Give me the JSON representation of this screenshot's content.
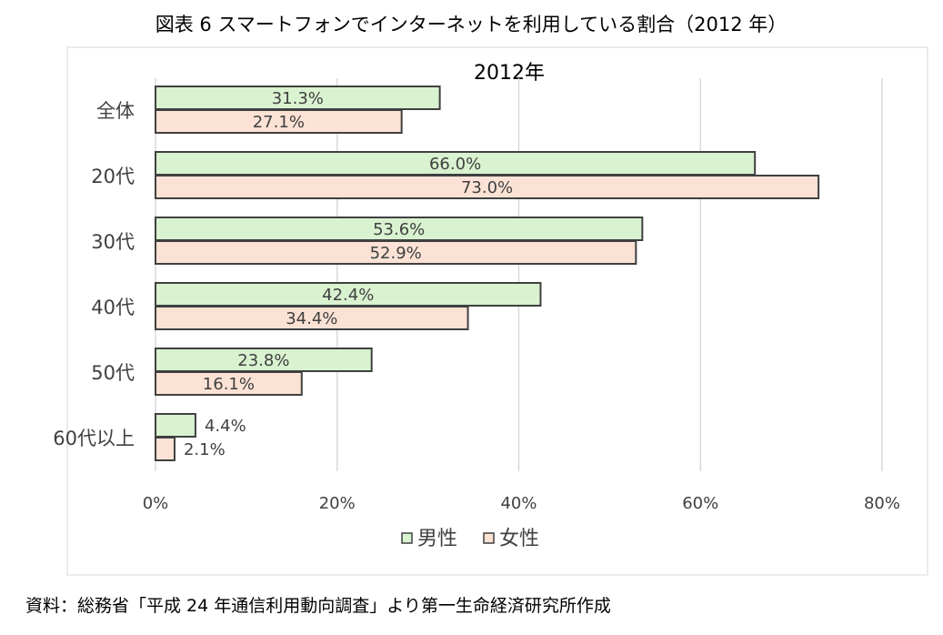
{
  "figure_title": "図表 6 スマートフォンでインターネットを利用している割合（2012 年）",
  "source_note": "資料：総務省「平成 24 年通信利用動向調査」より第一生命経済研究所作成",
  "colors": {
    "male": "#d9f2d0",
    "female": "#fbe2d5",
    "border": "#404040",
    "grid": "#d9d9d9"
  },
  "chart_data": {
    "type": "bar",
    "orientation": "horizontal",
    "title": "2012年",
    "categories": [
      "全体",
      "20代",
      "30代",
      "40代",
      "50代",
      "60代以上"
    ],
    "series": [
      {
        "name": "男性",
        "values": [
          31.3,
          66.0,
          53.6,
          42.4,
          23.8,
          4.4
        ],
        "labels": [
          "31.3%",
          "66.0%",
          "53.6%",
          "42.4%",
          "23.8%",
          "4.4%"
        ]
      },
      {
        "name": "女性",
        "values": [
          27.1,
          73.0,
          52.9,
          34.4,
          16.1,
          2.1
        ],
        "labels": [
          "27.1%",
          "73.0%",
          "52.9%",
          "34.4%",
          "16.1%",
          "2.1%"
        ]
      }
    ],
    "xlim": [
      0,
      80
    ],
    "xticks": [
      0,
      20,
      40,
      60,
      80
    ],
    "xtick_labels": [
      "0%",
      "20%",
      "40%",
      "60%",
      "80%"
    ],
    "grid": true,
    "legend": "bottom"
  }
}
